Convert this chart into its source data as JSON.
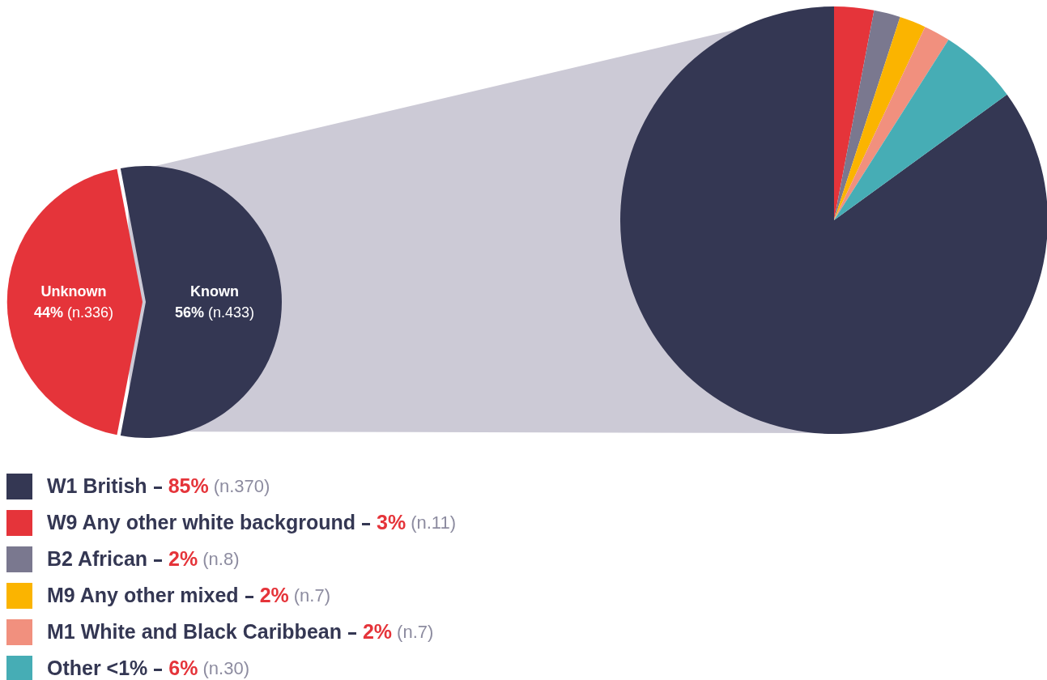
{
  "chart_data": [
    {
      "type": "pie",
      "categories": [
        "Unknown",
        "Known"
      ],
      "values": [
        44,
        56
      ],
      "colors": [
        "#e5343a",
        "#343753"
      ],
      "value_labels": [
        "44% (n.336)",
        "56% (n.433)"
      ]
    },
    {
      "type": "pie",
      "categories": [
        "W1 British",
        "W9 Any other white background",
        "B2 African",
        "M9 Any other mixed",
        "M1 White and Black Caribbean",
        "Other <1%"
      ],
      "values": [
        85,
        3,
        2,
        2,
        2,
        6
      ],
      "colors": [
        "#343753",
        "#e5343a",
        "#7a788f",
        "#fbb400",
        "#f1907e",
        "#46adb5"
      ],
      "value_labels": [
        "85% (n.370)",
        "3% (n.11)",
        "2% (n.8)",
        "2% (n.7)",
        "2% (n.7)",
        "6% (n.30)"
      ],
      "legend": "bottom left"
    }
  ]
}
